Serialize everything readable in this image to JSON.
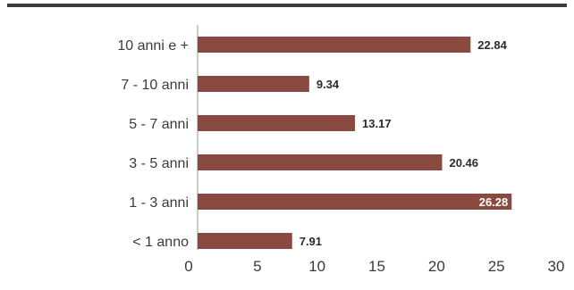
{
  "chart_data": {
    "type": "bar",
    "orientation": "horizontal",
    "categories": [
      "10 anni e +",
      "7 - 10 anni",
      "5 - 7 anni",
      "3 - 5 anni",
      "1 - 3 anni",
      "< 1 anno"
    ],
    "values": [
      22.84,
      9.34,
      13.17,
      20.46,
      26.28,
      7.91
    ],
    "value_labels": [
      "22.84",
      "9.34",
      "13.17",
      "20.46",
      "26.28",
      "7.91"
    ],
    "xlim": [
      0,
      30
    ],
    "xticks": [
      "0",
      "5",
      "10",
      "15",
      "20",
      "25",
      "30"
    ],
    "grid": false,
    "colors": {
      "bar": "#8B4A3F",
      "top_rule": "#3d3d3d",
      "axis": "#9a9a9a",
      "label_dark": "#2b2b2b",
      "label_light": "#ffffff"
    },
    "label_inside_index": 4
  }
}
